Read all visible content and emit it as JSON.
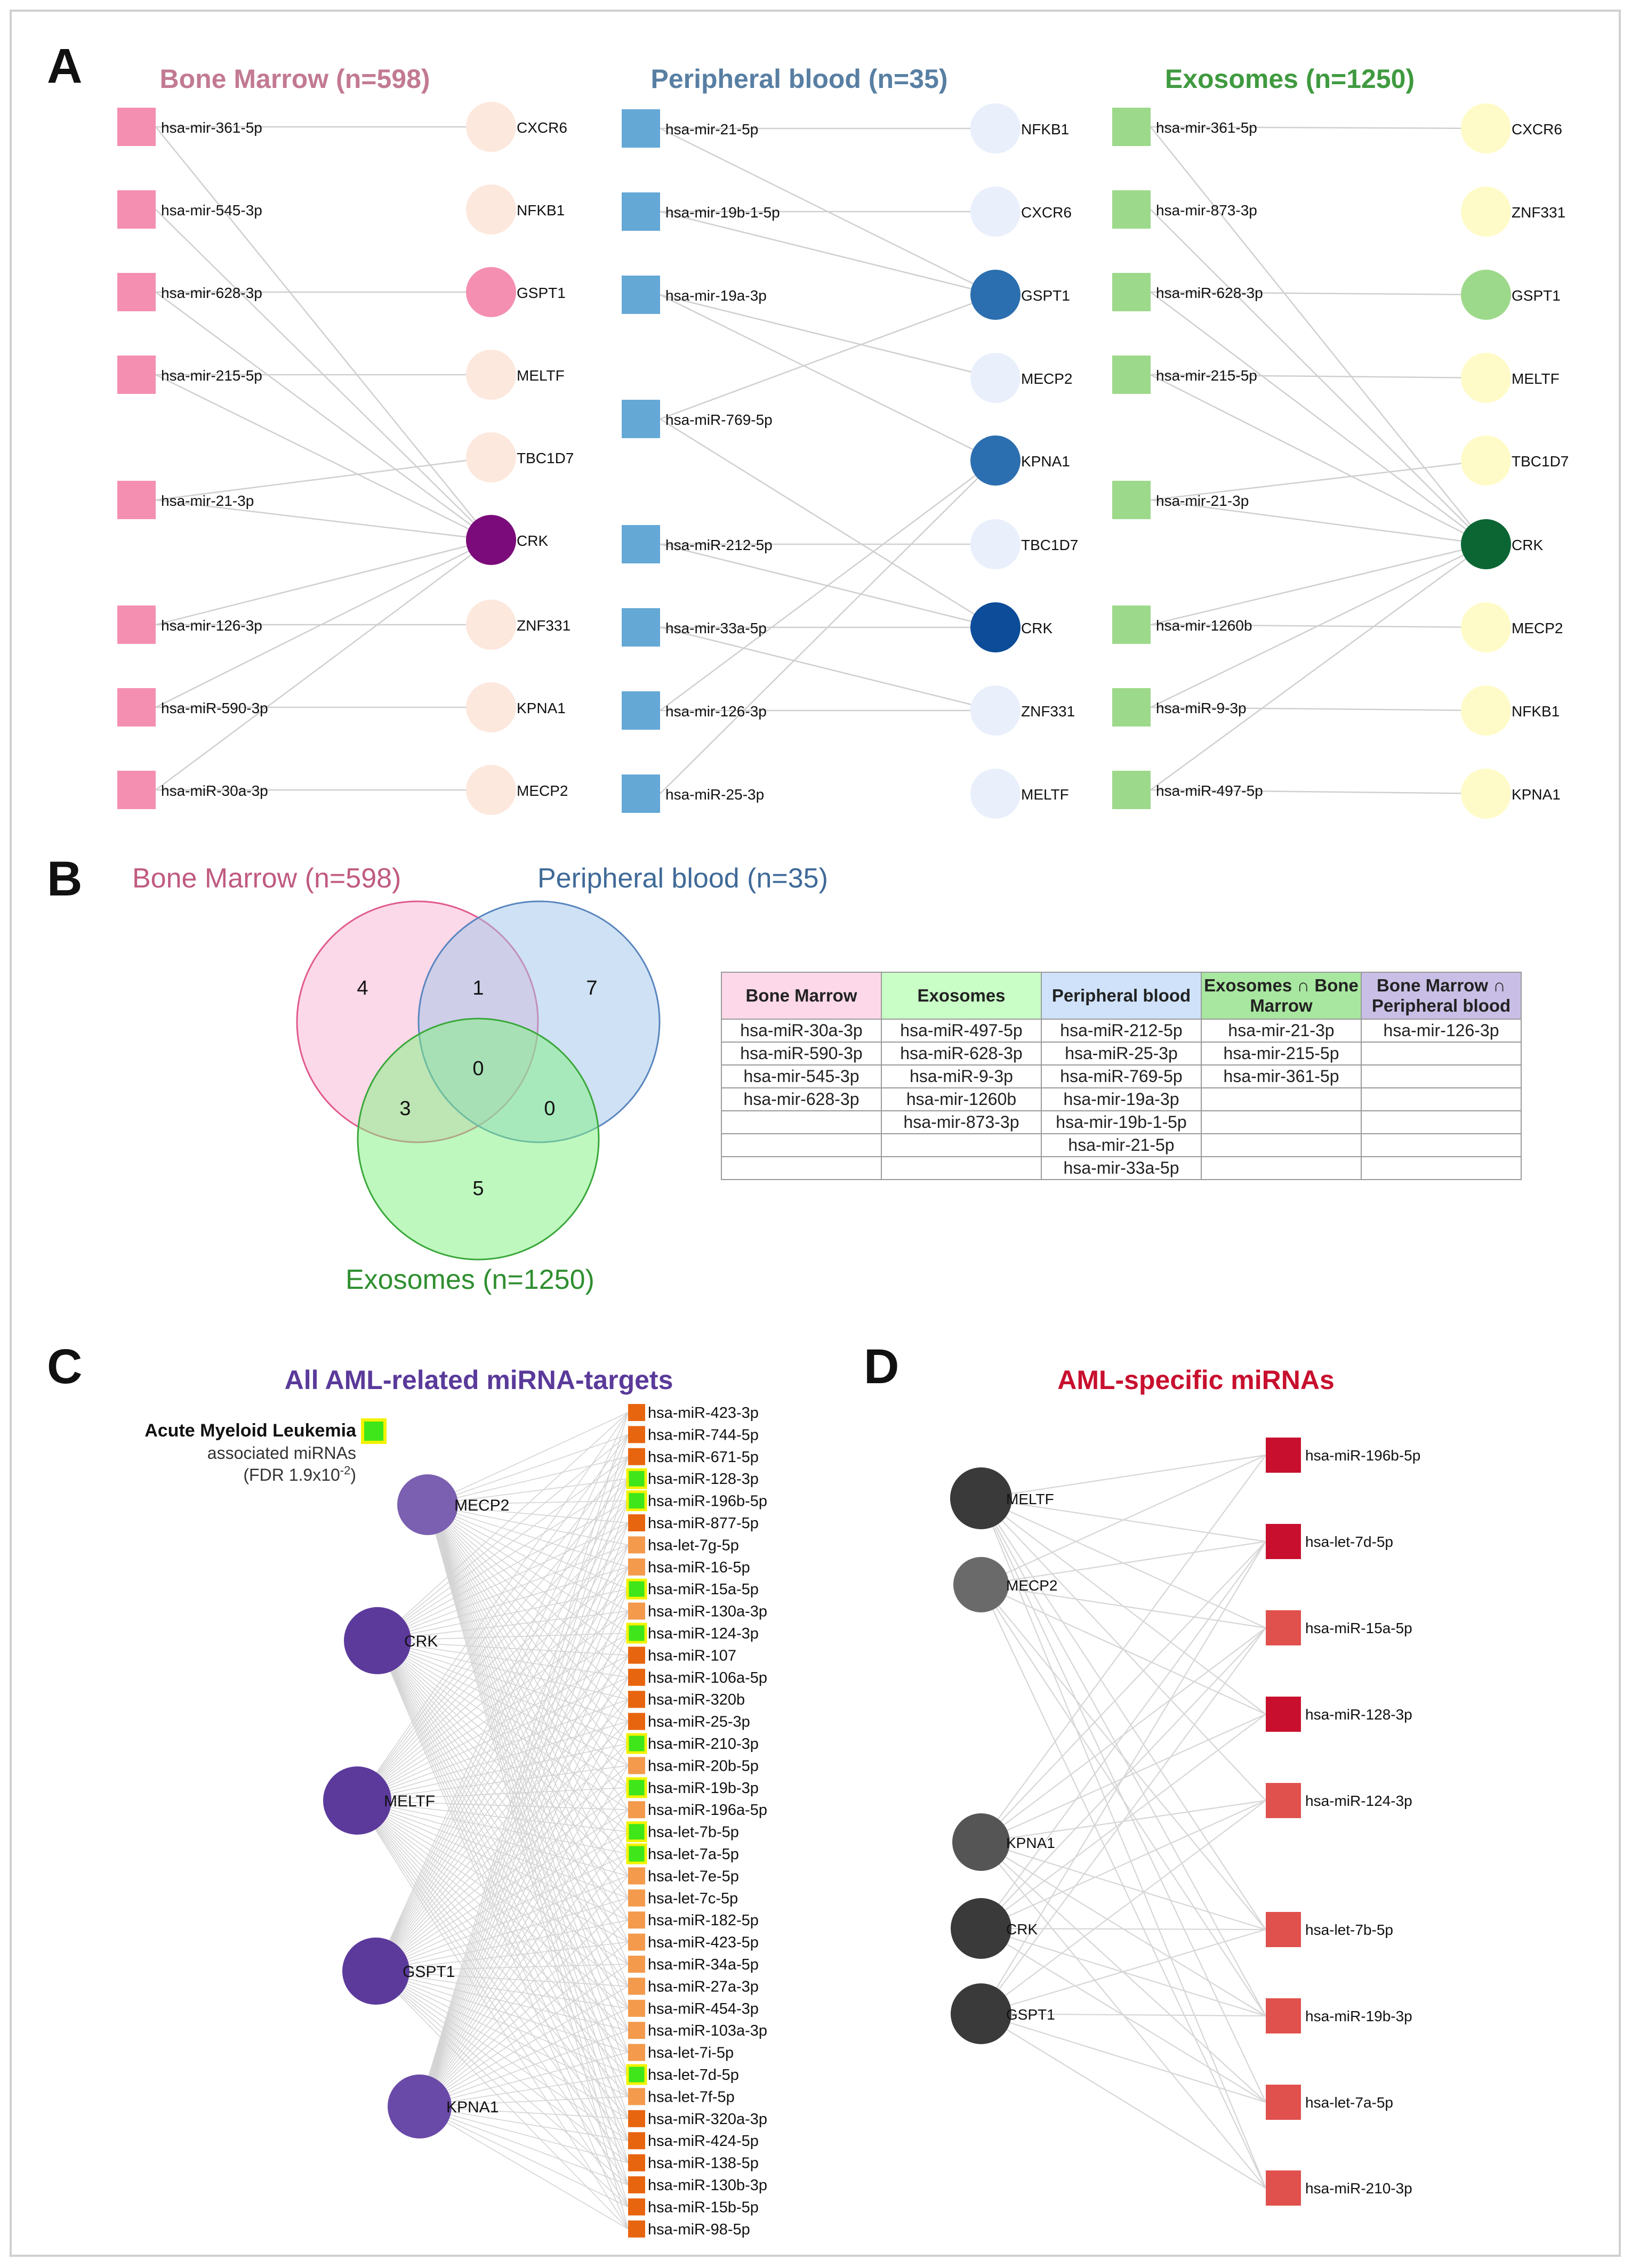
{
  "panelA": {
    "letter": "A",
    "groups": [
      {
        "title": "Bone Marrow (n=598)",
        "color": "#c27a91",
        "node_color": "#f48fb1",
        "target_light": "#fde8dd",
        "highlights": {
          "GSPT1": "#f48fb1",
          "CRK": "#7b0b7a"
        },
        "mirnas": [
          "hsa-mir-361-5p",
          "hsa-mir-545-3p",
          "hsa-mir-628-3p",
          "hsa-mir-215-5p",
          "hsa-mir-21-3p",
          "hsa-mir-126-3p",
          "hsa-miR-590-3p",
          "hsa-miR-30a-3p"
        ],
        "targets": [
          "CXCR6",
          "NFKB1",
          "GSPT1",
          "MELTF",
          "TBC1D7",
          "CRK",
          "ZNF331",
          "KPNA1",
          "MECP2"
        ]
      },
      {
        "title": "Peripheral blood (n=35)",
        "color": "#587fa3",
        "node_color": "#64a8d6",
        "target_light": "#e9effb",
        "highlights": {
          "GSPT1": "#2c6fb0",
          "KPNA1": "#2c6fb0",
          "CRK": "#0c4c99"
        },
        "mirnas": [
          "hsa-mir-21-5p",
          "hsa-mir-19b-1-5p",
          "hsa-mir-19a-3p",
          "hsa-miR-769-5p",
          "hsa-miR-212-5p",
          "hsa-mir-33a-5p",
          "hsa-mir-126-3p",
          "hsa-miR-25-3p"
        ],
        "targets": [
          "NFKB1",
          "CXCR6",
          "GSPT1",
          "MECP2",
          "KPNA1",
          "TBC1D7",
          "CRK",
          "ZNF331",
          "MELTF"
        ]
      },
      {
        "title": "Exosomes (n=1250)",
        "color": "#3f9a3f",
        "node_color": "#9dd98a",
        "target_light": "#fffbc8",
        "highlights": {
          "GSPT1": "#9dd98a",
          "CRK": "#0b6634"
        },
        "mirnas": [
          "hsa-mir-361-5p",
          "hsa-mir-873-3p",
          "hsa-miR-628-3p",
          "hsa-mir-215-5p",
          "hsa-mir-21-3p",
          "hsa-mir-1260b",
          "hsa-miR-9-3p",
          "hsa-miR-497-5p"
        ],
        "targets": [
          "CXCR6",
          "ZNF331",
          "GSPT1",
          "MELTF",
          "TBC1D7",
          "CRK",
          "MECP2",
          "NFKB1",
          "KPNA1"
        ]
      }
    ]
  },
  "panelB": {
    "letter": "B",
    "venn": {
      "labels": {
        "bone_marrow": "Bone Marrow (n=598)",
        "peripheral_blood": "Peripheral blood (n=35)",
        "exosomes": "Exosomes (n=1250)"
      },
      "counts": {
        "bm_only": "4",
        "bm_pb": "1",
        "pb_only": "7",
        "all": "0",
        "bm_ex": "3",
        "pb_ex": "0",
        "ex_only": "5"
      },
      "colors": {
        "bm": "#f9b3d2",
        "pb": "#9fc3ea",
        "ex": "#7ff27f"
      }
    },
    "table": {
      "headers": [
        "Bone Marrow",
        "Exosomes",
        "Peripheral blood",
        "Exosomes ∩ Bone Marrow",
        "Bone Marrow ∩ Peripheral blood"
      ],
      "header_colors": [
        "#fdd8e8",
        "#c9ffc6",
        "#cfe2fa",
        "#a8e7a0",
        "#c9bfe6"
      ],
      "rows": [
        [
          "hsa-miR-30a-3p",
          "hsa-miR-497-5p",
          "hsa-miR-212-5p",
          "hsa-mir-21-3p",
          "hsa-mir-126-3p"
        ],
        [
          "hsa-miR-590-3p",
          "hsa-miR-628-3p",
          "hsa-miR-25-3p",
          "hsa-mir-215-5p",
          ""
        ],
        [
          "hsa-mir-545-3p",
          "hsa-miR-9-3p",
          "hsa-miR-769-5p",
          "hsa-mir-361-5p",
          ""
        ],
        [
          "hsa-mir-628-3p",
          "hsa-mir-1260b",
          "hsa-mir-19a-3p",
          "",
          ""
        ],
        [
          "",
          "hsa-mir-873-3p",
          "hsa-mir-19b-1-5p",
          "",
          ""
        ],
        [
          "",
          "",
          "hsa-mir-21-5p",
          "",
          ""
        ],
        [
          "",
          "",
          "hsa-mir-33a-5p",
          "",
          ""
        ]
      ]
    }
  },
  "panelC": {
    "letter": "C",
    "title": "All AML-related miRNA-targets",
    "title_color": "#5a3a9a",
    "legend": {
      "line1": "Acute Myeloid Leukemia",
      "line2": "associated miRNAs",
      "line3": "(FDR 1.9x10",
      "exp": "-2",
      ")": ")"
    },
    "genes": [
      {
        "name": "MECP2",
        "color": "#7b5fb0"
      },
      {
        "name": "CRK",
        "color": "#5c3a9c"
      },
      {
        "name": "MELTF",
        "color": "#5c3a9c"
      },
      {
        "name": "GSPT1",
        "color": "#5c3a9c"
      },
      {
        "name": "KPNA1",
        "color": "#6a4aa8"
      }
    ],
    "mirnas": [
      {
        "name": "hsa-miR-423-3p",
        "aml": false,
        "shade": "dark"
      },
      {
        "name": "hsa-miR-744-5p",
        "aml": false,
        "shade": "dark"
      },
      {
        "name": "hsa-miR-671-5p",
        "aml": false,
        "shade": "dark"
      },
      {
        "name": "hsa-miR-128-3p",
        "aml": true,
        "shade": "dark"
      },
      {
        "name": "hsa-miR-196b-5p",
        "aml": true,
        "shade": "dark"
      },
      {
        "name": "hsa-miR-877-5p",
        "aml": false,
        "shade": "dark"
      },
      {
        "name": "hsa-let-7g-5p",
        "aml": false,
        "shade": "light"
      },
      {
        "name": "hsa-miR-16-5p",
        "aml": false,
        "shade": "light"
      },
      {
        "name": "hsa-miR-15a-5p",
        "aml": true,
        "shade": "light"
      },
      {
        "name": "hsa-miR-130a-3p",
        "aml": false,
        "shade": "light"
      },
      {
        "name": "hsa-miR-124-3p",
        "aml": true,
        "shade": "light"
      },
      {
        "name": "hsa-miR-107",
        "aml": false,
        "shade": "dark"
      },
      {
        "name": "hsa-miR-106a-5p",
        "aml": false,
        "shade": "dark"
      },
      {
        "name": "hsa-miR-320b",
        "aml": false,
        "shade": "dark"
      },
      {
        "name": "hsa-miR-25-3p",
        "aml": false,
        "shade": "dark"
      },
      {
        "name": "hsa-miR-210-3p",
        "aml": true,
        "shade": "dark"
      },
      {
        "name": "hsa-miR-20b-5p",
        "aml": false,
        "shade": "light"
      },
      {
        "name": "hsa-miR-19b-3p",
        "aml": true,
        "shade": "light"
      },
      {
        "name": "hsa-miR-196a-5p",
        "aml": false,
        "shade": "light"
      },
      {
        "name": "hsa-let-7b-5p",
        "aml": true,
        "shade": "light"
      },
      {
        "name": "hsa-let-7a-5p",
        "aml": true,
        "shade": "light"
      },
      {
        "name": "hsa-let-7e-5p",
        "aml": false,
        "shade": "light"
      },
      {
        "name": "hsa-let-7c-5p",
        "aml": false,
        "shade": "light"
      },
      {
        "name": "hsa-miR-182-5p",
        "aml": false,
        "shade": "light"
      },
      {
        "name": "hsa-miR-423-5p",
        "aml": false,
        "shade": "light"
      },
      {
        "name": "hsa-miR-34a-5p",
        "aml": false,
        "shade": "light"
      },
      {
        "name": "hsa-miR-27a-3p",
        "aml": false,
        "shade": "light"
      },
      {
        "name": "hsa-miR-454-3p",
        "aml": false,
        "shade": "light"
      },
      {
        "name": "hsa-miR-103a-3p",
        "aml": false,
        "shade": "light"
      },
      {
        "name": "hsa-let-7i-5p",
        "aml": false,
        "shade": "light"
      },
      {
        "name": "hsa-let-7d-5p",
        "aml": true,
        "shade": "light"
      },
      {
        "name": "hsa-let-7f-5p",
        "aml": false,
        "shade": "light"
      },
      {
        "name": "hsa-miR-320a-3p",
        "aml": false,
        "shade": "dark"
      },
      {
        "name": "hsa-miR-424-5p",
        "aml": false,
        "shade": "dark"
      },
      {
        "name": "hsa-miR-138-5p",
        "aml": false,
        "shade": "dark"
      },
      {
        "name": "hsa-miR-130b-3p",
        "aml": false,
        "shade": "dark"
      },
      {
        "name": "hsa-miR-15b-5p",
        "aml": false,
        "shade": "dark"
      },
      {
        "name": "hsa-miR-98-5p",
        "aml": false,
        "shade": "dark"
      }
    ],
    "colors": {
      "dark": "#e8650f",
      "light": "#f39a4c",
      "aml_fill": "#3ee61a",
      "aml_border": "#f2f200"
    }
  },
  "panelD": {
    "letter": "D",
    "title": "AML-specific miRNAs",
    "title_color": "#c8102e",
    "genes": [
      {
        "name": "MELTF",
        "color": "#3a3a3a"
      },
      {
        "name": "MECP2",
        "color": "#6a6a6a"
      },
      {
        "name": "KPNA1",
        "color": "#555555"
      },
      {
        "name": "CRK",
        "color": "#3a3a3a"
      },
      {
        "name": "GSPT1",
        "color": "#3a3a3a"
      }
    ],
    "mirnas": [
      {
        "name": "hsa-miR-196b-5p",
        "color": "#c8102e"
      },
      {
        "name": "hsa-let-7d-5p",
        "color": "#c8102e"
      },
      {
        "name": "hsa-miR-15a-5p",
        "color": "#e0504d"
      },
      {
        "name": "hsa-miR-128-3p",
        "color": "#c8102e"
      },
      {
        "name": "hsa-miR-124-3p",
        "color": "#e0504d"
      },
      {
        "name": "hsa-let-7b-5p",
        "color": "#e0504d"
      },
      {
        "name": "hsa-miR-19b-3p",
        "color": "#e0504d"
      },
      {
        "name": "hsa-let-7a-5p",
        "color": "#e0504d"
      },
      {
        "name": "hsa-miR-210-3p",
        "color": "#e0504d"
      }
    ]
  }
}
